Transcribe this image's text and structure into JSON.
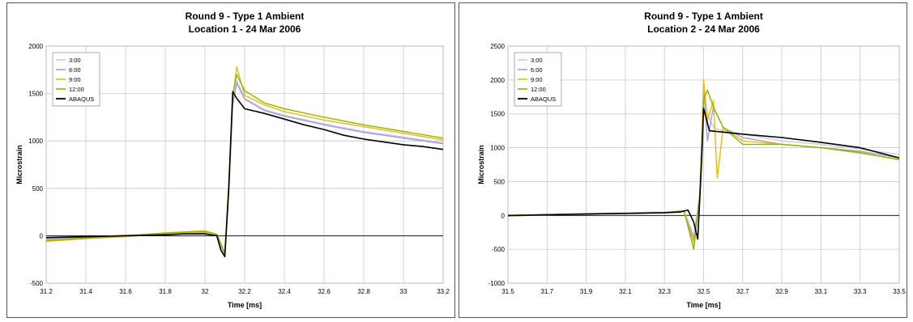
{
  "chart_data": [
    {
      "type": "line",
      "title": "Round 9 - Type 1 Ambient",
      "subtitle": "Location 1 - 24 Mar 2006",
      "xlabel": "Time [ms]",
      "ylabel": "Microstrain",
      "xlim": [
        31.2,
        33.2
      ],
      "ylim": [
        -500,
        2000
      ],
      "xticks": [
        31.2,
        31.4,
        31.6,
        31.8,
        32,
        32.2,
        32.4,
        32.6,
        32.8,
        33,
        33.2
      ],
      "yticks": [
        -500,
        0,
        500,
        1000,
        1500,
        2000
      ],
      "grid": true,
      "legend": "top-left",
      "series": [
        {
          "name": "3:00",
          "color": "#c8c8e8",
          "x": [
            31.2,
            31.4,
            31.6,
            31.8,
            32.0,
            32.06,
            32.1,
            32.12,
            32.14,
            32.16,
            32.2,
            32.3,
            32.4,
            32.6,
            32.8,
            33.0,
            33.2
          ],
          "y": [
            -40,
            -20,
            0,
            15,
            30,
            10,
            -200,
            500,
            1400,
            1640,
            1450,
            1330,
            1270,
            1180,
            1100,
            1040,
            980
          ]
        },
        {
          "name": "6:00",
          "color": "#9f9fdc",
          "x": [
            31.2,
            31.4,
            31.6,
            31.8,
            32.0,
            32.06,
            32.1,
            32.12,
            32.14,
            32.16,
            32.2,
            32.3,
            32.4,
            32.6,
            32.8,
            33.0,
            33.2
          ],
          "y": [
            -30,
            -15,
            5,
            20,
            30,
            5,
            -210,
            450,
            1380,
            1610,
            1440,
            1320,
            1260,
            1170,
            1090,
            1030,
            970
          ]
        },
        {
          "name": "9:00",
          "color": "#f0b800",
          "x": [
            31.2,
            31.4,
            31.6,
            31.8,
            32.0,
            32.06,
            32.1,
            32.12,
            32.14,
            32.16,
            32.2,
            32.3,
            32.4,
            32.6,
            32.8,
            33.0,
            33.2
          ],
          "y": [
            -60,
            -30,
            -10,
            20,
            40,
            10,
            -190,
            520,
            1450,
            1780,
            1480,
            1380,
            1310,
            1220,
            1150,
            1080,
            1010
          ]
        },
        {
          "name": "12:00",
          "color": "#8cb400",
          "x": [
            31.2,
            31.4,
            31.6,
            31.8,
            32.0,
            32.06,
            32.1,
            32.12,
            32.14,
            32.16,
            32.2,
            32.3,
            32.4,
            32.6,
            32.8,
            33.0,
            33.2
          ],
          "y": [
            -50,
            -25,
            0,
            30,
            50,
            15,
            -180,
            560,
            1500,
            1700,
            1530,
            1400,
            1340,
            1250,
            1170,
            1100,
            1030
          ]
        },
        {
          "name": "ABAQUS",
          "color": "#000000",
          "x": [
            31.2,
            31.4,
            31.6,
            31.8,
            31.9,
            32.0,
            32.06,
            32.08,
            32.1,
            32.12,
            32.14,
            32.16,
            32.2,
            32.3,
            32.4,
            32.5,
            32.6,
            32.7,
            32.8,
            32.9,
            33.0,
            33.1,
            33.2
          ],
          "y": [
            -20,
            -10,
            0,
            10,
            20,
            20,
            0,
            -150,
            -220,
            500,
            1520,
            1450,
            1340,
            1290,
            1230,
            1170,
            1120,
            1060,
            1020,
            990,
            960,
            940,
            910
          ]
        }
      ]
    },
    {
      "type": "line",
      "title": "Round 9 - Type 1 Ambient",
      "subtitle": "Location 2 - 24 Mar 2006",
      "xlabel": "Time [ms]",
      "ylabel": "Microstrain",
      "xlim": [
        31.5,
        33.5
      ],
      "ylim": [
        -1000,
        2500
      ],
      "xticks": [
        31.5,
        31.7,
        31.9,
        32.1,
        32.3,
        32.5,
        32.7,
        32.9,
        33.1,
        33.3,
        33.5
      ],
      "yticks": [
        -1000,
        -500,
        0,
        500,
        1000,
        1500,
        2000,
        2500
      ],
      "grid": true,
      "legend": "top-left",
      "series": [
        {
          "name": "3:00",
          "color": "#c8c8e8",
          "x": [
            31.5,
            31.7,
            31.9,
            32.1,
            32.3,
            32.4,
            32.45,
            32.48,
            32.5,
            32.52,
            32.55,
            32.6,
            32.7,
            32.9,
            33.1,
            33.3,
            33.5
          ],
          "y": [
            0,
            15,
            30,
            40,
            50,
            70,
            -300,
            300,
            1800,
            1500,
            1300,
            1250,
            1200,
            1100,
            1050,
            980,
            900
          ]
        },
        {
          "name": "6:00",
          "color": "#9f9fdc",
          "x": [
            31.5,
            31.7,
            31.9,
            32.1,
            32.3,
            32.4,
            32.45,
            32.48,
            32.5,
            32.52,
            32.55,
            32.6,
            32.7,
            32.9,
            33.1,
            33.3,
            33.5
          ],
          "y": [
            0,
            10,
            25,
            30,
            40,
            60,
            -350,
            250,
            1900,
            1100,
            1600,
            1300,
            1150,
            1050,
            1000,
            950,
            850
          ]
        },
        {
          "name": "9:00",
          "color": "#f0b800",
          "x": [
            31.5,
            31.7,
            31.9,
            32.1,
            32.3,
            32.4,
            32.45,
            32.48,
            32.5,
            32.52,
            32.55,
            32.57,
            32.6,
            32.7,
            32.9,
            33.1,
            33.3,
            33.5
          ],
          "y": [
            -10,
            10,
            20,
            30,
            40,
            60,
            -400,
            200,
            2000,
            1400,
            1700,
            550,
            1300,
            1100,
            1050,
            1000,
            920,
            830
          ]
        },
        {
          "name": "12:00",
          "color": "#8cb400",
          "x": [
            31.5,
            31.7,
            31.9,
            32.1,
            32.3,
            32.4,
            32.45,
            32.48,
            32.5,
            32.52,
            32.55,
            32.6,
            32.7,
            32.9,
            33.1,
            33.3,
            33.5
          ],
          "y": [
            -10,
            10,
            20,
            30,
            40,
            70,
            -500,
            300,
            1700,
            1850,
            1600,
            1300,
            1050,
            1050,
            1000,
            930,
            820
          ]
        },
        {
          "name": "ABAQUS",
          "color": "#000000",
          "x": [
            31.5,
            31.7,
            31.9,
            32.1,
            32.3,
            32.38,
            32.42,
            32.45,
            32.47,
            32.49,
            32.5,
            32.53,
            32.6,
            32.7,
            32.9,
            33.1,
            33.3,
            33.5
          ],
          "y": [
            0,
            10,
            20,
            30,
            40,
            50,
            80,
            -100,
            -350,
            800,
            1580,
            1250,
            1230,
            1200,
            1150,
            1080,
            1000,
            850
          ]
        }
      ]
    }
  ]
}
